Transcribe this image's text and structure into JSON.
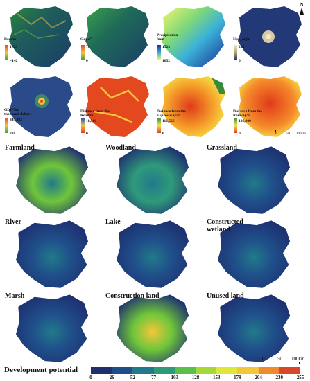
{
  "top_row1": [
    {
      "id": "dem",
      "title": "Dem/m",
      "max": "1729",
      "min": "−142",
      "legend_colors": [
        "#d94e2b",
        "#f5c242",
        "#3aa23a"
      ]
    },
    {
      "id": "slope",
      "title": "Slope/°",
      "max": "70",
      "min": "0",
      "legend_colors": [
        "#d94e2b",
        "#f5c242",
        "#3aa23a"
      ]
    },
    {
      "id": "precip",
      "title": "Precipitation /mm",
      "max": "1523",
      "min": "1052",
      "legend_colors": [
        "#1a2b8f",
        "#3ab0d8",
        "#f7f76a"
      ]
    },
    {
      "id": "npp",
      "title": "Npp_night",
      "max": "295",
      "min": "0",
      "legend_colors": [
        "#f5e6c8",
        "#b8a070",
        "#1e2f6e"
      ]
    }
  ],
  "top_row2": [
    {
      "id": "gdp",
      "title": "GDP/Ten thousand dollars",
      "max": "349,983",
      "min": "210",
      "legend_colors": [
        "#d94e2b",
        "#f5c242",
        "#3aa23a"
      ]
    },
    {
      "id": "road",
      "title": "Distance from the Road/m",
      "max": "18,560",
      "min": "0",
      "legend_colors": [
        "#2a4fb0",
        "#f5c242",
        "#e03a1a"
      ]
    },
    {
      "id": "express",
      "title": "Distance from the Expressway/m",
      "max": "116,566",
      "min": "0",
      "legend_colors": [
        "#3a8a3a",
        "#f5e64a",
        "#e03a1a"
      ]
    },
    {
      "id": "rail",
      "title": "Distance from the Railway/m",
      "max": "126,909",
      "min": "0",
      "legend_colors": [
        "#3a8a3a",
        "#f5e64a",
        "#e03a1a"
      ]
    }
  ],
  "top_scale": {
    "labels": [
      "0",
      "50",
      "100km"
    ]
  },
  "north_label": "N",
  "panels": [
    {
      "id": "farmland",
      "label": "Farmland",
      "intensity": 0.55
    },
    {
      "id": "woodland",
      "label": "Woodland",
      "intensity": 0.45
    },
    {
      "id": "grassland",
      "label": "Grassland",
      "intensity": 0.15
    },
    {
      "id": "river",
      "label": "River",
      "intensity": 0.08
    },
    {
      "id": "lake",
      "label": "Lake",
      "intensity": 0.1
    },
    {
      "id": "constructed_wetland",
      "label": "Constructed wetland",
      "intensity": 0.3
    },
    {
      "id": "marsh",
      "label": "Marsh",
      "intensity": 0.2
    },
    {
      "id": "construction_land",
      "label": "Construction land",
      "intensity": 0.7
    },
    {
      "id": "unused_land",
      "label": "Unused land",
      "intensity": 0.12
    }
  ],
  "bottom_scale": {
    "labels": [
      "0",
      "50",
      "100km"
    ]
  },
  "colorbar": {
    "title": "Development potential",
    "ticks": [
      "0",
      "26",
      "52",
      "77",
      "103",
      "128",
      "153",
      "179",
      "204",
      "230",
      "255"
    ],
    "colors": [
      "#1e3070",
      "#1f4f8a",
      "#217a8a",
      "#2f9a7a",
      "#5bbf4e",
      "#a6d83a",
      "#dfe83a",
      "#f2c73a",
      "#ef8a2e",
      "#d9462a"
    ]
  }
}
